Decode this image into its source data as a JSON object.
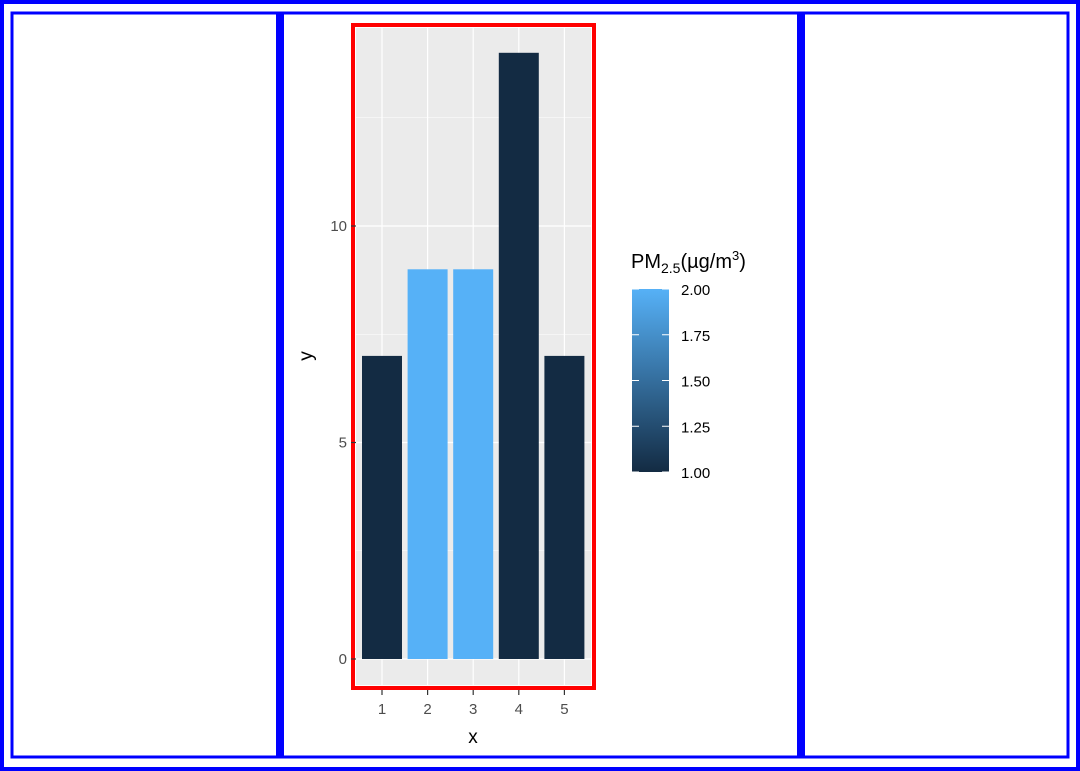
{
  "chart_data": {
    "type": "bar",
    "categories": [
      "1",
      "2",
      "3",
      "4",
      "5"
    ],
    "values": [
      7,
      9,
      9,
      14,
      7
    ],
    "fill_values": [
      1,
      2,
      2,
      1,
      1
    ],
    "xlabel": "x",
    "ylabel": "y",
    "ylim": [
      0,
      14
    ],
    "y_ticks": [
      0,
      5,
      10
    ],
    "grid": true,
    "legend": {
      "title_main": "PM",
      "title_sub": "2.5",
      "title_unit": "(µg/m",
      "title_sup": "3",
      "title_close": ")",
      "position": "right",
      "ticks": [
        "1.00",
        "1.25",
        "1.50",
        "1.75",
        "2.00"
      ],
      "range": [
        1,
        2
      ],
      "color_low": "#132B43",
      "color_high": "#56B1F7"
    }
  },
  "colors": {
    "panel_background": "#EBEBEB",
    "grid": "#FFFFFF",
    "frame_outline": "#0000FF",
    "highlight_box": "#FF0000"
  }
}
